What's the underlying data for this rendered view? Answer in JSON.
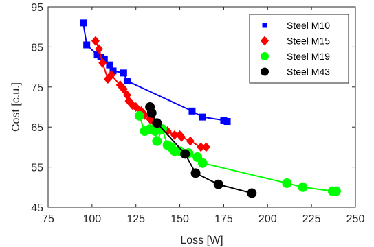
{
  "chart_data": {
    "type": "scatter",
    "title": "",
    "xlabel": "Loss [W]",
    "ylabel": "Cost [c.u.]",
    "xlim": [
      75,
      250
    ],
    "ylim": [
      45,
      95
    ],
    "xticks": [
      75,
      100,
      125,
      150,
      175,
      200,
      225,
      250
    ],
    "yticks": [
      45,
      55,
      65,
      75,
      85,
      95
    ],
    "grid": false,
    "legend_position": "top-right",
    "series": [
      {
        "name": "Steel M10",
        "color": "#0000ff",
        "marker": "square",
        "x": [
          95,
          97,
          103,
          105,
          107,
          110,
          112,
          118,
          120,
          157,
          163,
          175,
          177
        ],
        "y": [
          91,
          85.5,
          83,
          82.5,
          82,
          80.5,
          79,
          78.5,
          76.5,
          69,
          67.5,
          66.7,
          66.4
        ]
      },
      {
        "name": "Steel M15",
        "color": "#ff0000",
        "marker": "diamond",
        "x": [
          102,
          104,
          106,
          109,
          111,
          116,
          118,
          120,
          121,
          123,
          125,
          128,
          130,
          133,
          135,
          139,
          143,
          147,
          150,
          151,
          156,
          162,
          165
        ],
        "y": [
          86.5,
          84.5,
          81,
          77,
          78,
          75.5,
          74.5,
          73,
          71.5,
          70.5,
          70,
          69,
          68,
          67,
          66.5,
          65,
          64,
          63,
          63,
          62.5,
          61.5,
          60,
          60
        ]
      },
      {
        "name": "Steel M19",
        "color": "#00ff00",
        "marker": "circle",
        "x": [
          127,
          130,
          133,
          136,
          137,
          140,
          143,
          145,
          147,
          150,
          155,
          160,
          163,
          211,
          220,
          237,
          239
        ],
        "y": [
          67.8,
          64,
          64.5,
          64,
          61.5,
          64.5,
          60.5,
          60,
          59,
          59,
          58.5,
          57.5,
          56,
          51,
          50,
          49,
          49
        ]
      },
      {
        "name": "Steel M43",
        "color": "#000000",
        "marker": "circle",
        "x": [
          133,
          134,
          137,
          153,
          159,
          172,
          191
        ],
        "y": [
          70,
          68.5,
          66,
          58.3,
          53.5,
          50.7,
          48.5
        ]
      }
    ]
  }
}
